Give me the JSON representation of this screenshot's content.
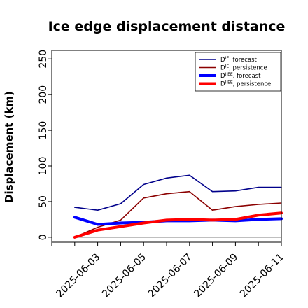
{
  "chart_data": {
    "type": "line",
    "title": "Ice edge displacement distance",
    "xlabel": "",
    "ylabel": "Displacement (km)",
    "x": [
      "2025-06-02",
      "2025-06-03",
      "2025-06-04",
      "2025-06-05",
      "2025-06-06",
      "2025-06-07",
      "2025-06-08",
      "2025-06-09",
      "2025-06-10",
      "2025-06-11"
    ],
    "x_tick_labels": [
      "2025-06-03",
      "2025-06-05",
      "2025-06-07",
      "2025-06-09",
      "2025-06-11"
    ],
    "x_tick_label_colors": [
      "#228B22",
      "#000000",
      "#000000",
      "#000000",
      "#000000"
    ],
    "xlim": [
      "2025-06-01",
      "2025-06-11"
    ],
    "ylim": [
      -7,
      262
    ],
    "y_ticks": [
      0,
      50,
      100,
      150,
      200,
      250
    ],
    "grid": false,
    "legend_position": "top-right",
    "series": [
      {
        "name": "D^IE, forecast",
        "name_main": "D",
        "name_sup": "IE",
        "name_suffix": ", forecast",
        "color": "#00008B",
        "width": "thin",
        "values": [
          42,
          38,
          47,
          74,
          83,
          87,
          64,
          65,
          70,
          70
        ]
      },
      {
        "name": "D^IE, persistence",
        "name_main": "D",
        "name_sup": "IE",
        "name_suffix": ", persistence",
        "color": "#8B0000",
        "width": "thin",
        "values": [
          0,
          14,
          24,
          55,
          61,
          64,
          38,
          43,
          46,
          48
        ]
      },
      {
        "name": "D^IIEE, forecast",
        "name_main": "D",
        "name_sup": "IIEE",
        "name_suffix": ", forecast",
        "color": "#0000FF",
        "width": "thick",
        "values": [
          28,
          18,
          20,
          21,
          23,
          23,
          24,
          23,
          25,
          26
        ]
      },
      {
        "name": "D^IIEE, persistence",
        "name_main": "D",
        "name_sup": "IIEE",
        "name_suffix": ", persistence",
        "color": "#FF0000",
        "width": "thick",
        "values": [
          0,
          10,
          15,
          20,
          24,
          25,
          24,
          25,
          31,
          34
        ]
      }
    ],
    "zero_line": {
      "value": 0,
      "from": "2025-06-02",
      "to": "2025-06-11",
      "color": "#999999"
    }
  }
}
